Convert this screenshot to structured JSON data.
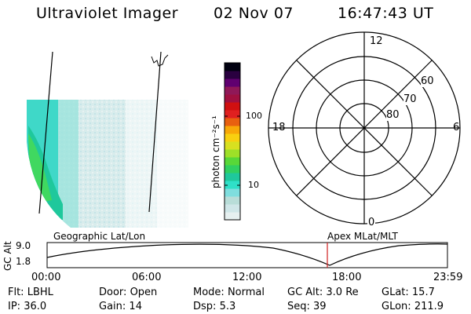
{
  "header": {
    "instrument": "Ultraviolet Imager",
    "date": "02 Nov 07",
    "time": "16:47:43 UT"
  },
  "colorbar": {
    "units": "photon cm⁻²s⁻¹",
    "ticks": [
      "100",
      "10"
    ],
    "colors": [
      "#e6f0f0",
      "#cfe6e8",
      "#b8ddd8",
      "#7fdede",
      "#2fe0c8",
      "#1fc89c",
      "#30d060",
      "#58d838",
      "#9ee028",
      "#d8e020",
      "#f8d010",
      "#f8a808",
      "#e86010",
      "#e02020",
      "#d01010",
      "#a01040",
      "#901858",
      "#600070",
      "#2a0040",
      "#000010"
    ]
  },
  "polar": {
    "mlt_labels": [
      "12",
      "18",
      "6",
      "0"
    ],
    "lat_labels": [
      "60",
      "70",
      "80"
    ]
  },
  "timeline": {
    "geo_label": "Geographic Lat/Lon",
    "apex_label": "Apex MLat/MLT",
    "y_axis_label": "GC Alt",
    "y_ticks": [
      "9.0",
      "1.8"
    ],
    "x_ticks": [
      "00:00",
      "06:00",
      "12:00",
      "18:00",
      "23:59"
    ],
    "current_time_marker": "16:47:43"
  },
  "info": {
    "row1": [
      {
        "key": "Flt:",
        "value": "LBHL"
      },
      {
        "key": "Door:",
        "value": "Open"
      },
      {
        "key": "Mode:",
        "value": "Normal"
      },
      {
        "key": "GC Alt:",
        "value": "3.0 Re"
      },
      {
        "key": "GLat:",
        "value": "15.7"
      }
    ],
    "row2": [
      {
        "key": "IP:",
        "value": "36.0"
      },
      {
        "key": "Gain:",
        "value": "14"
      },
      {
        "key": "Dsp:",
        "value": "5.3"
      },
      {
        "key": "Seq:",
        "value": "39"
      },
      {
        "key": "GLon:",
        "value": "211.9"
      }
    ]
  }
}
